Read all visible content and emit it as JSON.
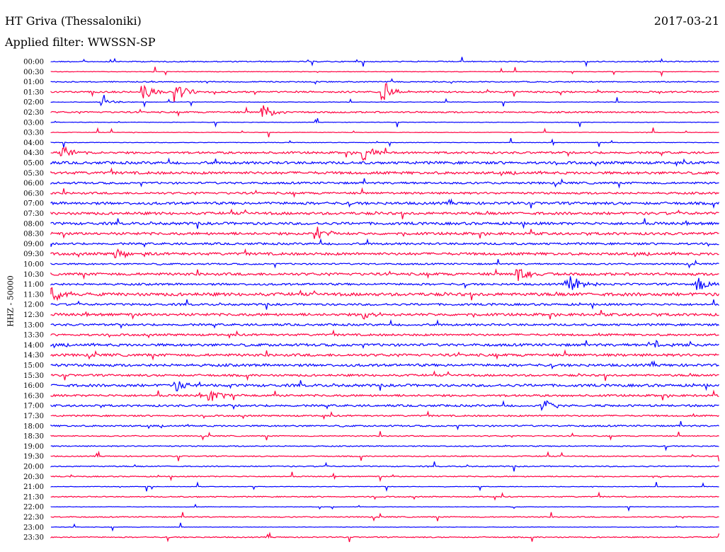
{
  "header": {
    "station": "HT Griva (Thessaloniki)",
    "date": "2017-03-21",
    "filter": "Applied filter: WWSSN-SP"
  },
  "chart_data": {
    "type": "line",
    "ylabel": "HHZ - 50000",
    "rows": [
      "00:00",
      "00:30",
      "01:00",
      "01:30",
      "02:00",
      "02:30",
      "03:00",
      "03:30",
      "04:00",
      "04:30",
      "05:00",
      "05:30",
      "06:00",
      "06:30",
      "07:00",
      "07:30",
      "08:00",
      "08:30",
      "09:00",
      "09:30",
      "10:00",
      "10:30",
      "11:00",
      "11:30",
      "12:00",
      "12:30",
      "13:00",
      "13:30",
      "14:00",
      "14:30",
      "15:00",
      "15:30",
      "16:00",
      "16:30",
      "17:00",
      "17:30",
      "18:00",
      "18:30",
      "19:00",
      "19:30",
      "20:00",
      "20:30",
      "21:00",
      "21:30",
      "22:00",
      "22:30",
      "23:00",
      "23:30"
    ],
    "colors": [
      "#0000ff",
      "#ff0040"
    ],
    "noise_level": [
      2,
      1,
      2,
      3,
      1,
      3,
      1,
      1,
      1,
      4,
      5,
      5,
      4,
      4,
      5,
      5,
      5,
      5,
      4,
      5,
      3,
      5,
      4,
      6,
      4,
      5,
      4,
      4,
      5,
      5,
      5,
      4,
      5,
      4,
      4,
      3,
      3,
      2,
      2,
      2,
      2,
      2,
      1,
      2,
      1,
      2,
      1,
      2
    ],
    "events": [
      {
        "row": 3,
        "pos": 0.14,
        "amp": 10
      },
      {
        "row": 3,
        "pos": 0.19,
        "amp": 14
      },
      {
        "row": 3,
        "pos": 0.5,
        "amp": 13
      },
      {
        "row": 4,
        "pos": 0.08,
        "amp": 5
      },
      {
        "row": 5,
        "pos": 0.32,
        "amp": 11
      },
      {
        "row": 9,
        "pos": 0.02,
        "amp": 9
      },
      {
        "row": 9,
        "pos": 0.47,
        "amp": 10
      },
      {
        "row": 17,
        "pos": 0.4,
        "amp": 12
      },
      {
        "row": 19,
        "pos": 0.1,
        "amp": 7
      },
      {
        "row": 21,
        "pos": 0.7,
        "amp": 11
      },
      {
        "row": 22,
        "pos": 0.78,
        "amp": 13
      },
      {
        "row": 22,
        "pos": 0.97,
        "amp": 9
      },
      {
        "row": 23,
        "pos": 0.0,
        "amp": 14
      },
      {
        "row": 25,
        "pos": 0.47,
        "amp": 6
      },
      {
        "row": 28,
        "pos": 0.9,
        "amp": 7
      },
      {
        "row": 32,
        "pos": 0.19,
        "amp": 8
      },
      {
        "row": 33,
        "pos": 0.24,
        "amp": 10
      },
      {
        "row": 34,
        "pos": 0.74,
        "amp": 7
      }
    ]
  }
}
